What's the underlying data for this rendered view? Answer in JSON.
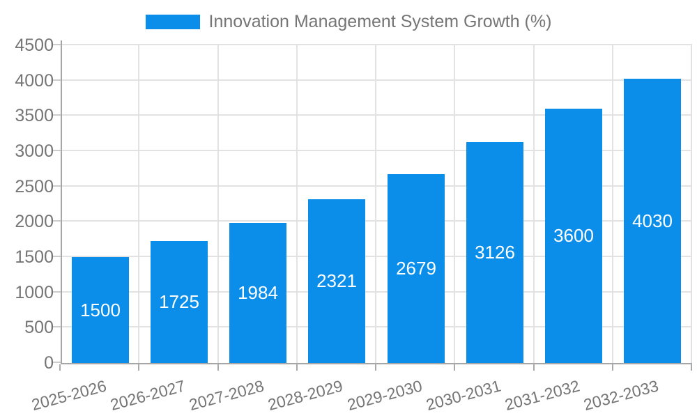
{
  "colors": {
    "bar": "#0a8eea",
    "text": "#757575",
    "grid": "#e2e2e2",
    "axis": "#a6a6a6",
    "y_tick": "#cccccc",
    "x_tick": "#aaaaaa",
    "value_label": "#ffffff",
    "background": "#ffffff"
  },
  "chart_data": {
    "type": "bar",
    "title": "Innovation Management System Growth (%)",
    "categories": [
      "2025-2026",
      "2026-2027",
      "2027-2028",
      "2028-2029",
      "2029-2030",
      "2030-2031",
      "2031-2032",
      "2032-2033"
    ],
    "values": [
      1500,
      1725,
      1984,
      2321,
      2679,
      3126,
      3600,
      4030
    ],
    "xlabel": "",
    "ylabel": "",
    "ylim": [
      0,
      4500
    ],
    "ytick_step": 500,
    "yticks": [
      0,
      500,
      1000,
      1500,
      2000,
      2500,
      3000,
      3500,
      4000,
      4500
    ],
    "grid": true,
    "legend_position": "top-center",
    "value_labels": "inside-center",
    "x_label_rotation_deg": -15
  }
}
